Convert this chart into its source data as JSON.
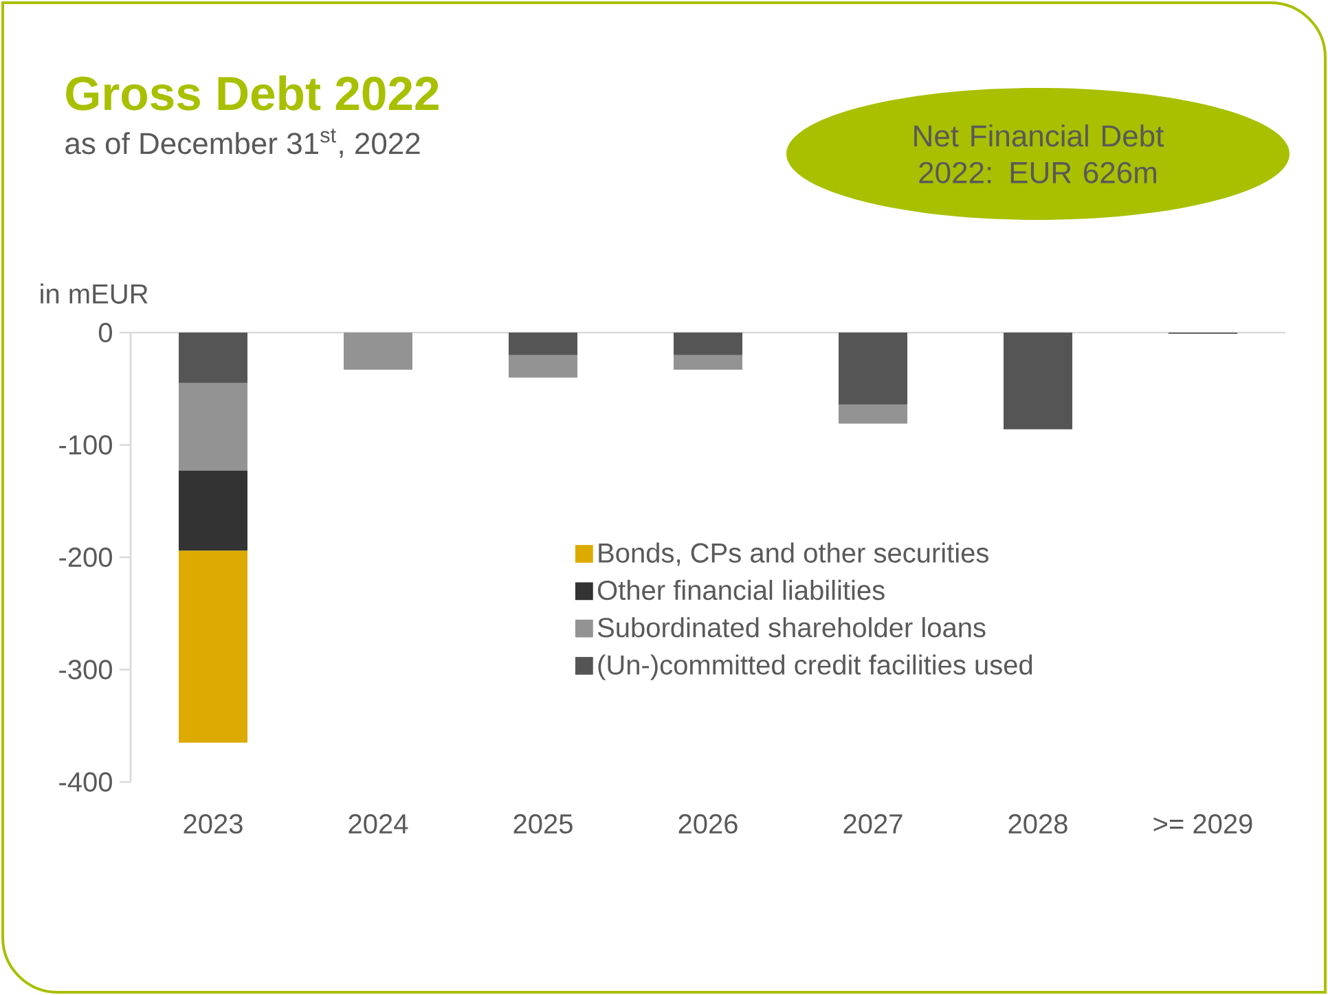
{
  "chart_data": {
    "type": "bar",
    "title": "Gross Debt 2022",
    "subtitle": "as of December 31$^{st}$, 2022",
    "ylabel": "in mEUR",
    "annotations": [
      "Net Financial Debt 2022: EUR 626m"
    ],
    "categories": [
      "2023",
      "2024",
      "2025",
      "2026",
      "2027",
      "2028",
      ">= 2029"
    ],
    "stacked": true,
    "legend": "bottom right",
    "grid": false,
    "ylim": [
      -400,
      0
    ],
    "yticks": [
      0,
      -100,
      -200,
      -300,
      -400
    ],
    "series": [
      {
        "name": "(Un-)committed credit facilities used",
        "color": "#555555",
        "values": [
          -45,
          0,
          -20,
          -20,
          -64,
          -86,
          -1
        ]
      },
      {
        "name": "Subordinated shareholder loans",
        "color": "#939393",
        "values": [
          -78,
          -33,
          -20,
          -13,
          -17,
          0,
          0
        ]
      },
      {
        "name": "Other financial liabilities",
        "color": "#333333",
        "values": [
          -71,
          0,
          0,
          0,
          0,
          0,
          0
        ]
      },
      {
        "name": "Bonds, CPs and other securities",
        "color": "#dcaa00",
        "values": [
          -171,
          0,
          0,
          0,
          0,
          0,
          0
        ]
      }
    ]
  }
}
